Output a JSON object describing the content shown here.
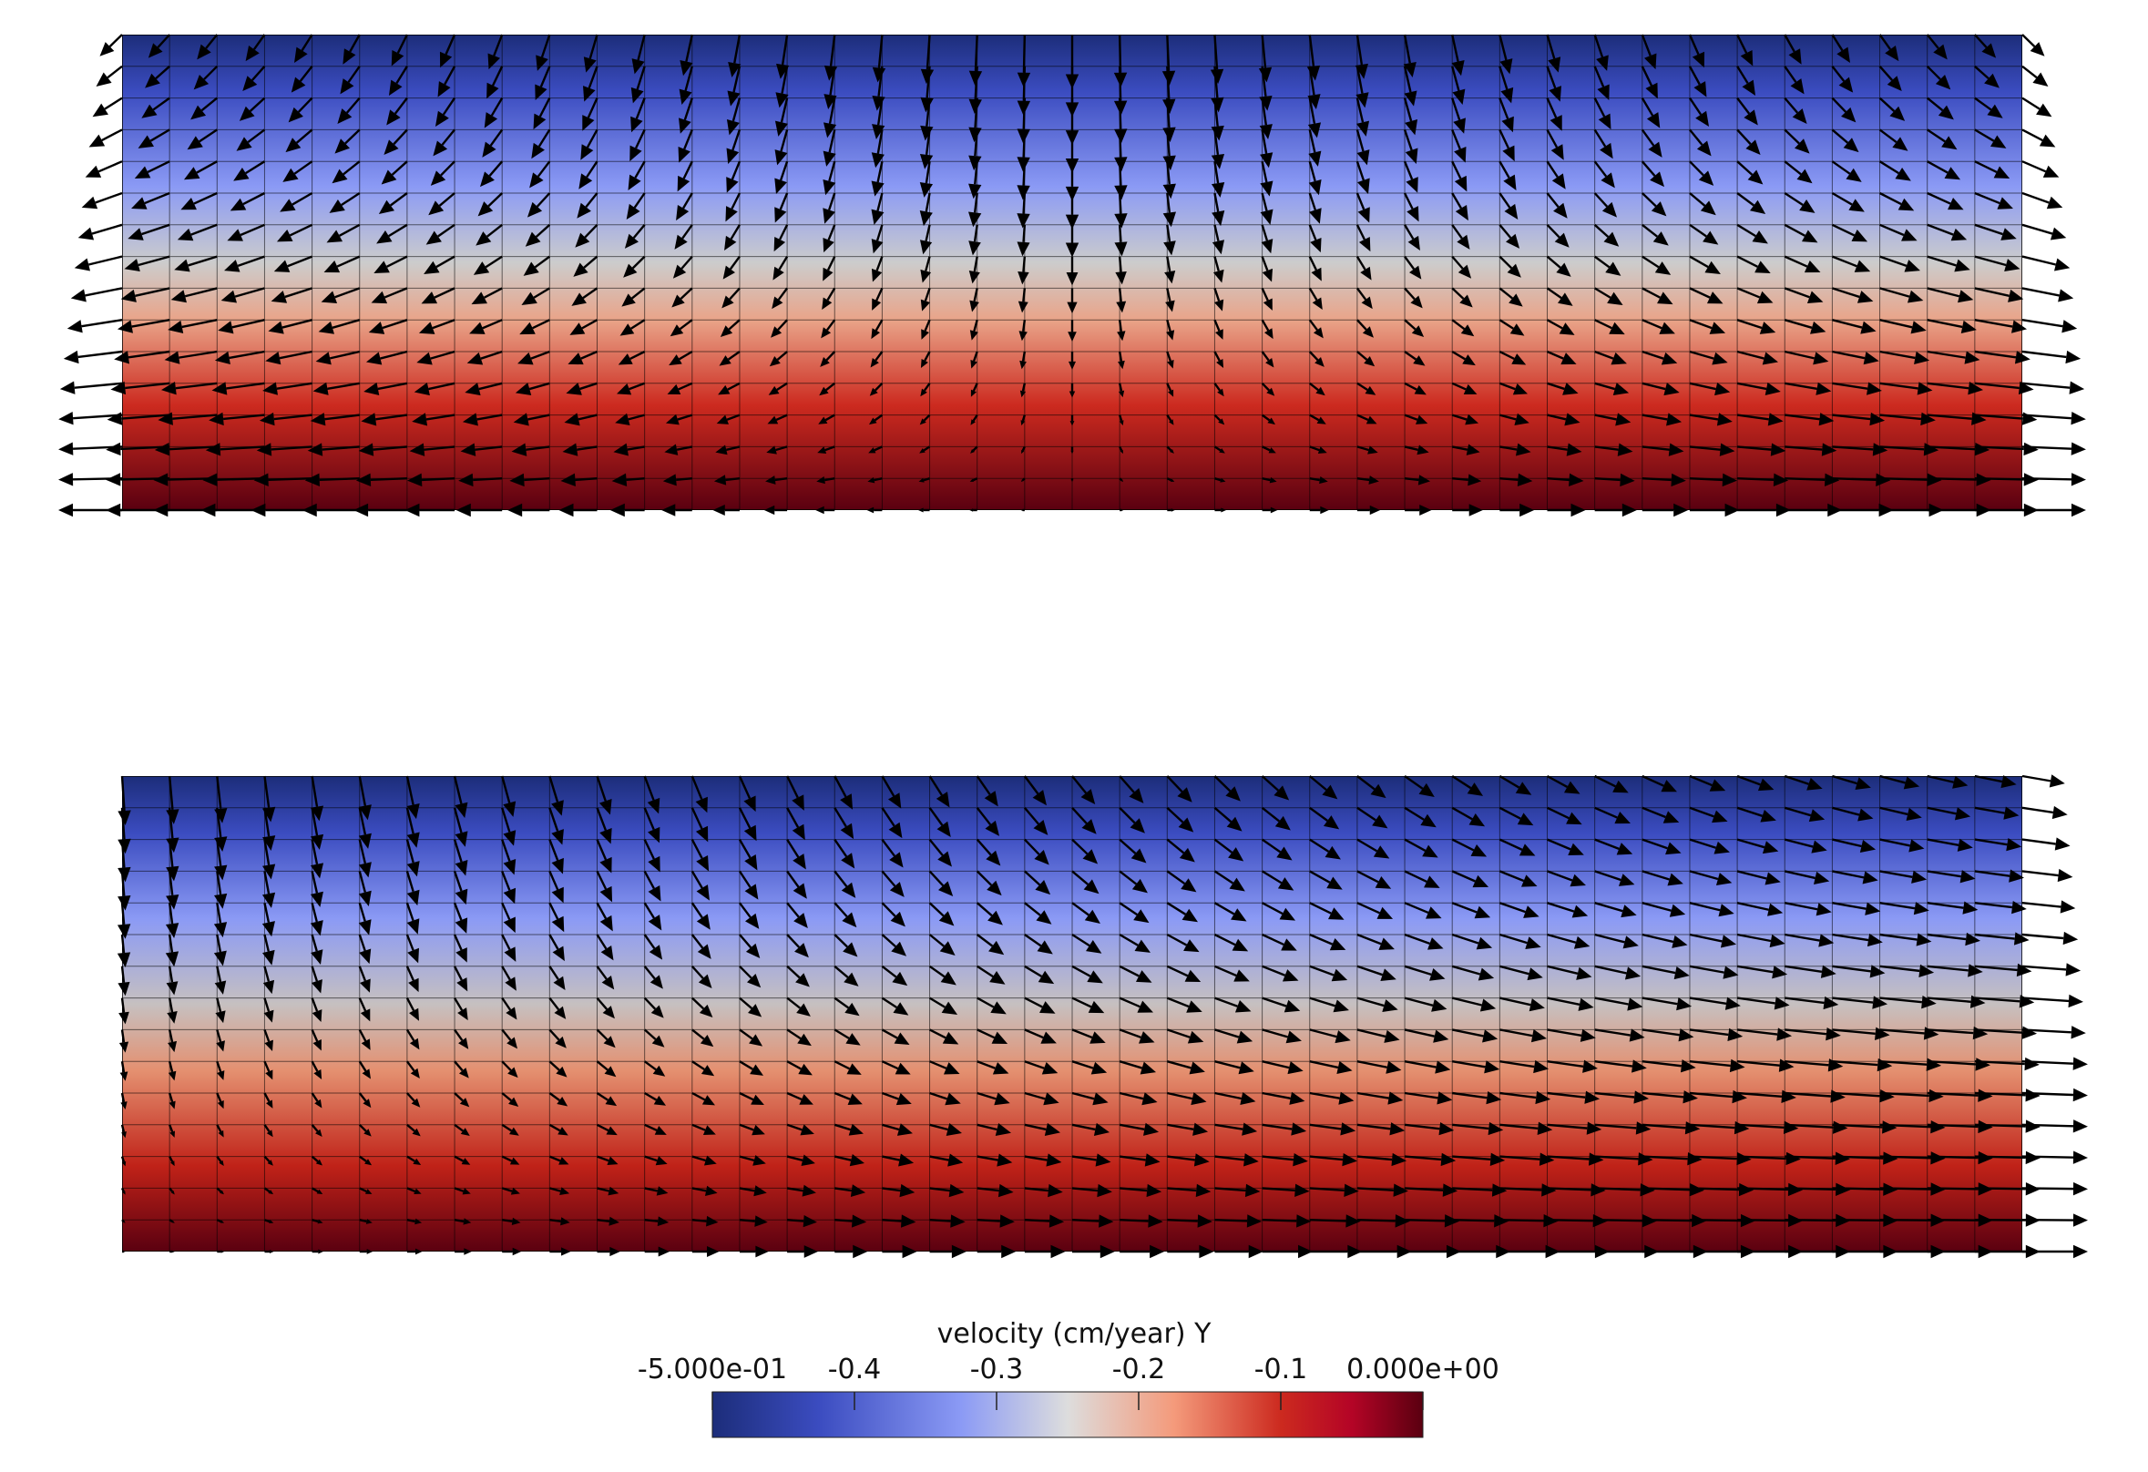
{
  "panels": [
    {
      "name": "top-panel",
      "flow": "symmetric-divergent"
    },
    {
      "name": "bottom-panel",
      "flow": "one-sided-outflow-right"
    }
  ],
  "colorbar": {
    "title": "velocity (cm/year) Y",
    "range": [
      -0.5,
      0.0
    ],
    "colormap": "cool-to-warm",
    "stops": [
      "#1c2d7a",
      "#3b4cc0",
      "#8b9af5",
      "#dddddd",
      "#f49a7b",
      "#cc2a1f",
      "#b40426",
      "#5a0010"
    ],
    "ticks": [
      {
        "value": -0.5,
        "label": "-5.000e-01"
      },
      {
        "value": -0.4,
        "label": "-0.4"
      },
      {
        "value": -0.3,
        "label": "-0.3"
      },
      {
        "value": -0.2,
        "label": "-0.2"
      },
      {
        "value": -0.1,
        "label": "-0.1"
      },
      {
        "value": 0.0,
        "label": "0.000e+00"
      }
    ]
  }
}
